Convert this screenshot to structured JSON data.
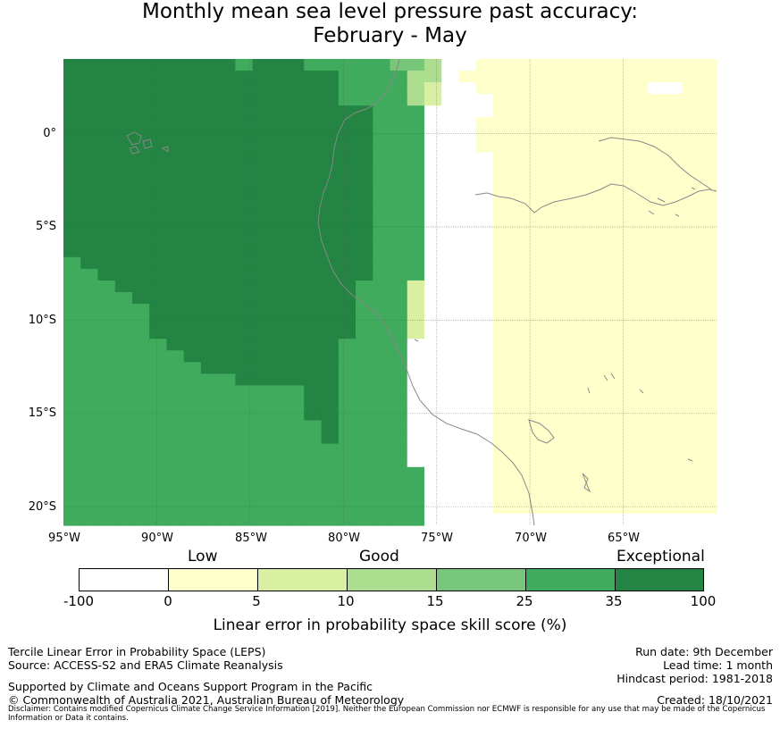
{
  "title": {
    "line1": "Monthly mean sea level pressure past accuracy:",
    "line2": "February - May"
  },
  "map": {
    "lat_labels": [
      "0°",
      "5°S",
      "10°S",
      "15°S",
      "20°S"
    ],
    "lon_labels": [
      "95°W",
      "90°W",
      "85°W",
      "80°W",
      "75°W",
      "70°W",
      "65°W"
    ],
    "extent": {
      "lon_min": -95,
      "lon_max": -60,
      "lat_min": -21,
      "lat_max": 4
    },
    "skill_grid": [
      "66666666665666555554430011111111111111",
      "66666666666666665555330111111111111111",
      "66666666666666665555320011111111110011",
      "66666666666666665555320001111111111111",
      "66666666666666666655500001111111111111",
      "66666666666666666655500011111111111111",
      "66666666666666666655500011111111111111",
      "66666666666666666655500011111111111111",
      "66666666666666666655500001111111111111",
      "66666666666666666655500001111111111111",
      "66666666666666666655500001111111111111",
      "66666666666666666655500001111111111111",
      "66666666666666666655500001111111111111",
      "66666666666666666655500001111111111111",
      "66666666666666666655500001111111111111",
      "66666666666666666655500001111111111111",
      "66666666666666666655500001111111111111",
      "56666666666666666655500001111111111111",
      "55666666666666666655500001111111111111",
      "55566666666666666555200001111111111111",
      "55556666666666666555200001111111111111",
      "55555666666666666555200001111111111111",
      "55555666666666666555200001111111111111",
      "55555666666666666555200001111111111111",
      "55555566666666665555000001111111111111",
      "55555556666666665555000001111111111111",
      "55555555666666665555000001111111111111",
      "55555555556666665555000001111111111111",
      "55555555555555665555000001111111111111",
      "55555555555555665555000001111111111111",
      "55555555555555665555000001111111111111",
      "55555555555555565555000001111111111111",
      "55555555555555565555000001111111111111",
      "55555555555555555555000001111111111111",
      "55555555555555555555000001111111111111",
      "55555555555555555555500001111111111111",
      "55555555555555555555500001111111111111",
      "55555555555555555555500001111111111111",
      "55555555555555555555500001111111111111",
      "55555555555555555555500000000000000000"
    ]
  },
  "legend": {
    "categories": [
      "Low",
      "Good",
      "Exceptional"
    ],
    "ticks": [
      "-100",
      "0",
      "5",
      "10",
      "15",
      "25",
      "35",
      "100"
    ],
    "colors": [
      "#ffffff",
      "#ffffcc",
      "#d9f0a3",
      "#addd8e",
      "#78c679",
      "#41ab5d",
      "#238443"
    ],
    "title": "Linear error in probability space skill score (%)"
  },
  "footer": {
    "left1": "Tercile Linear Error in Probability Space (LEPS)",
    "left2": "Source: ACCESS-S2 and ERA5 Climate Reanalysis",
    "left3": "Supported by Climate and Oceans Support Program in the Pacific",
    "left4": "© Commonwealth of Australia 2021, Australian Bureau of Meteorology",
    "right1": "Run date: 9th December",
    "right2": "Lead time: 1 month",
    "right3": "Hindcast period: 1981-2018",
    "right4": "Created: 18/10/2021",
    "disclaimer": "Disclaimer: Contains modified Copernicus Climate Change Service Information [2019]. Neither the European Commission nor ECMWF is responsible for any use that may be made of the Copernicus Information or Data it contains."
  }
}
